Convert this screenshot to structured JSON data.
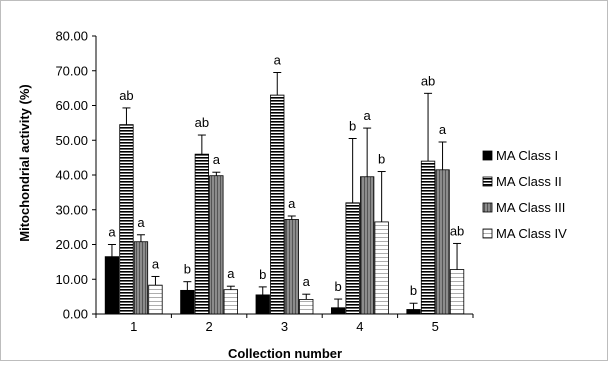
{
  "chart_data": {
    "type": "bar",
    "xlabel": "Collection number",
    "ylabel": "Mitochondrial activity (%)",
    "ylim": [
      0,
      80
    ],
    "yticks": [
      "0.00",
      "10.00",
      "20.00",
      "30.00",
      "40.00",
      "50.00",
      "60.00",
      "70.00",
      "80.00"
    ],
    "categories": [
      "1",
      "2",
      "3",
      "4",
      "5"
    ],
    "grid": false,
    "legend_position": "right",
    "series": [
      {
        "name": "MA Class I",
        "values": [
          16.5,
          6.8,
          5.5,
          1.8,
          1.3
        ],
        "errors": [
          3.5,
          2.5,
          2.3,
          2.5,
          1.8
        ],
        "letters": [
          "a",
          "b",
          "b",
          "b",
          "b"
        ],
        "pattern": "solid"
      },
      {
        "name": "MA Class II",
        "values": [
          54.5,
          46.0,
          63.0,
          32.0,
          44.0
        ],
        "errors": [
          4.8,
          5.5,
          6.5,
          18.5,
          19.5
        ],
        "letters": [
          "ab",
          "ab",
          "a",
          "b",
          "ab"
        ],
        "pattern": "horizontal-lines"
      },
      {
        "name": "MA Class III",
        "values": [
          20.8,
          39.8,
          27.2,
          39.5,
          41.5
        ],
        "errors": [
          2.0,
          1.0,
          1.0,
          14.0,
          8.0
        ],
        "letters": [
          "a",
          "a",
          "a",
          "a",
          "a"
        ],
        "pattern": "vertical-stripes"
      },
      {
        "name": "MA Class IV",
        "values": [
          8.3,
          7.0,
          4.2,
          26.5,
          12.8
        ],
        "errors": [
          2.5,
          1.0,
          1.5,
          14.5,
          7.5
        ],
        "letters": [
          "a",
          "a",
          "a",
          "b",
          "ab"
        ],
        "pattern": "light-horizontal-lines"
      }
    ]
  }
}
